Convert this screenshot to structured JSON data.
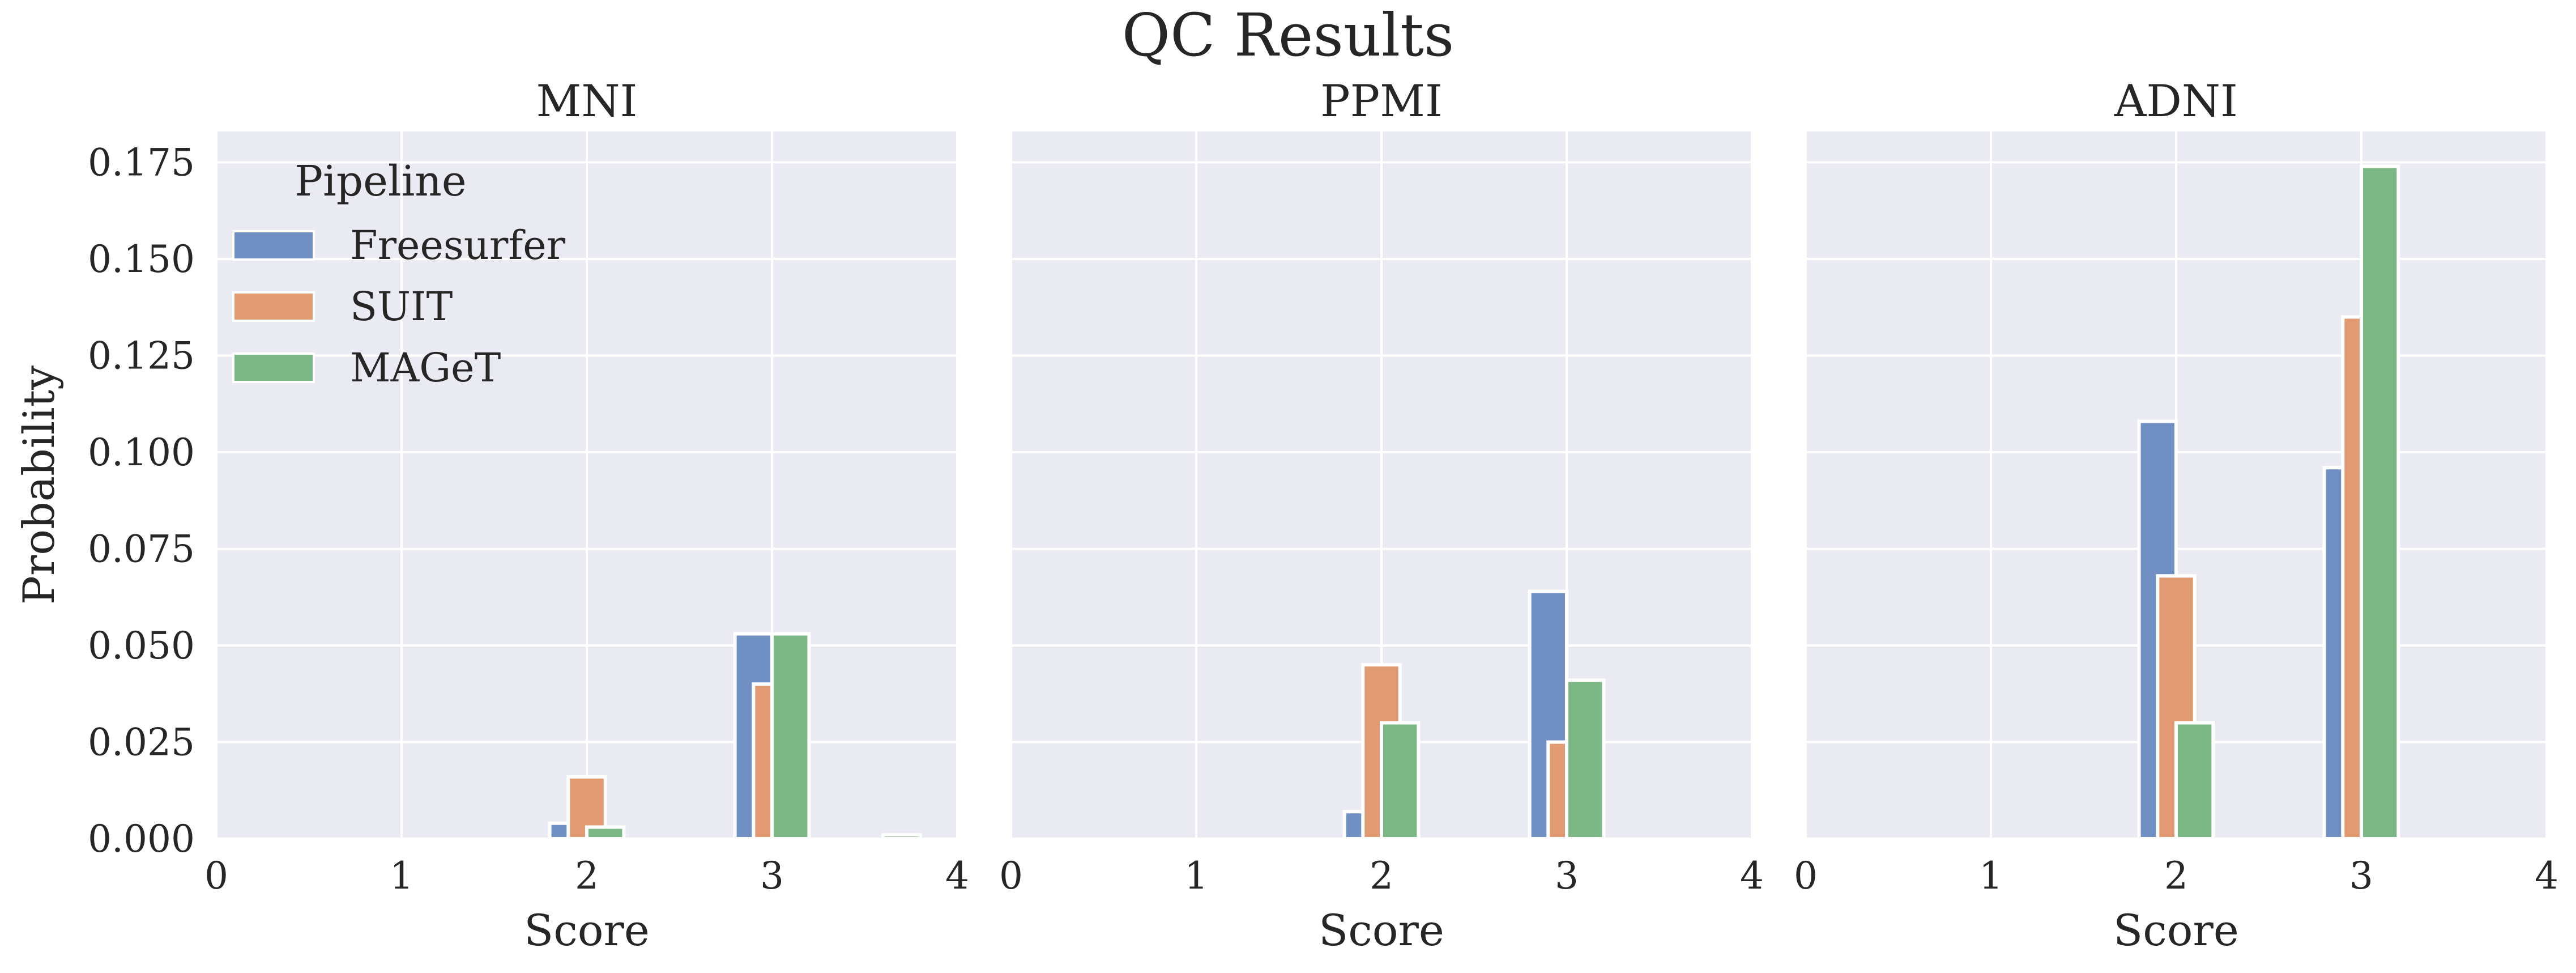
{
  "title": "QC Results",
  "chart_data": {
    "type": "bar",
    "xlabel": "Score",
    "ylabel": "Probability",
    "xlim": [
      0,
      4
    ],
    "ylim": [
      0,
      0.183
    ],
    "xticks": [
      0,
      1,
      2,
      3,
      4
    ],
    "yticks": [
      0,
      0.025,
      0.05,
      0.075,
      0.1,
      0.125,
      0.15,
      0.175
    ],
    "ytick_labels": [
      "0.000",
      "0.025",
      "0.050",
      "0.075",
      "0.100",
      "0.125",
      "0.150",
      "0.175"
    ],
    "grid": true,
    "legend": {
      "title": "Pipeline",
      "location": "top-left",
      "entries": [
        "Freesurfer",
        "SUIT",
        "MAGeT"
      ]
    },
    "colors": {
      "Freesurfer": "#7090c4",
      "SUIT": "#e29a73",
      "MAGeT": "#7cb885"
    },
    "bin_width": 0.2,
    "series_names": [
      "Freesurfer",
      "SUIT",
      "MAGeT"
    ],
    "panels": [
      {
        "title": "MNI",
        "bars": [
          {
            "series": "Freesurfer",
            "x": 1.9,
            "value": 0.004
          },
          {
            "series": "SUIT",
            "x": 2.0,
            "value": 0.016
          },
          {
            "series": "MAGeT",
            "x": 2.1,
            "value": 0.003
          },
          {
            "series": "Freesurfer",
            "x": 2.9,
            "value": 0.053
          },
          {
            "series": "SUIT",
            "x": 3.0,
            "value": 0.04
          },
          {
            "series": "MAGeT",
            "x": 3.1,
            "value": 0.053
          },
          {
            "series": "MAGeT",
            "x": 3.7,
            "value": 0.001
          }
        ]
      },
      {
        "title": "PPMI",
        "bars": [
          {
            "series": "Freesurfer",
            "x": 1.9,
            "value": 0.007
          },
          {
            "series": "SUIT",
            "x": 2.0,
            "value": 0.045
          },
          {
            "series": "MAGeT",
            "x": 2.1,
            "value": 0.03
          },
          {
            "series": "Freesurfer",
            "x": 2.9,
            "value": 0.064
          },
          {
            "series": "SUIT",
            "x": 3.0,
            "value": 0.025
          },
          {
            "series": "MAGeT",
            "x": 3.1,
            "value": 0.041
          }
        ]
      },
      {
        "title": "ADNI",
        "bars": [
          {
            "series": "Freesurfer",
            "x": 1.9,
            "value": 0.108
          },
          {
            "series": "SUIT",
            "x": 2.0,
            "value": 0.068
          },
          {
            "series": "MAGeT",
            "x": 2.1,
            "value": 0.03
          },
          {
            "series": "Freesurfer",
            "x": 2.9,
            "value": 0.096
          },
          {
            "series": "SUIT",
            "x": 3.0,
            "value": 0.135
          },
          {
            "series": "MAGeT",
            "x": 3.1,
            "value": 0.174
          }
        ]
      }
    ]
  }
}
